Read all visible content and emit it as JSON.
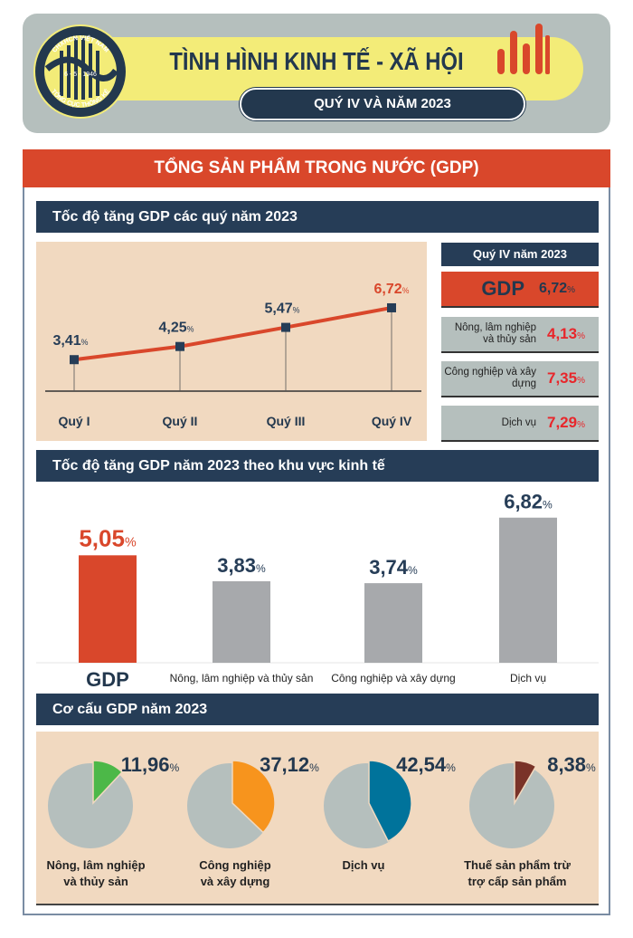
{
  "header": {
    "title": "TÌNH HÌNH KINH TẾ - XÃ HỘI",
    "period": "QUÝ IV VÀ NĂM 2023",
    "logo": {
      "top_text": "CHXHCN VIỆT NAM",
      "date": "6 - 5 - 1946",
      "bottom_text": "TỔNG CỤC THỐNG KÊ"
    }
  },
  "main_title": "TỔNG SẢN PHẨM TRONG NƯỚC (GDP)",
  "colors": {
    "red": "#d9472b",
    "navy": "#263d57",
    "panel": "#f1d9c0",
    "gray_bar": "#a7a9ac",
    "pie_gray": "#b5bfbd"
  },
  "sections": {
    "quarterly": "Tốc độ tăng GDP các quý năm 2023",
    "sector": "Tốc độ tăng GDP năm 2023 theo khu vực kinh tế",
    "structure": "Cơ cấu GDP năm 2023"
  },
  "q4_panel": {
    "title": "Quý IV năm 2023",
    "gdp": {
      "label": "GDP",
      "value": "6,72"
    },
    "items": [
      {
        "label": "Nông, lâm nghiệp và thủy sản",
        "value": "4,13"
      },
      {
        "label": "Công nghiệp và xây dựng",
        "value": "7,35"
      },
      {
        "label": "Dịch vụ",
        "value": "7,29"
      }
    ],
    "unit": "%"
  },
  "chart_data": [
    {
      "type": "line",
      "categories": [
        "Quý I",
        "Quý II",
        "Quý III",
        "Quý IV"
      ],
      "values": [
        3.41,
        4.25,
        5.47,
        6.72
      ],
      "labels": [
        "3,41",
        "4,25",
        "5,47",
        "6,72"
      ],
      "unit": "%",
      "highlight_last": true
    },
    {
      "type": "bar",
      "categories": [
        "GDP",
        "Nông, lâm nghiệp và thủy sản",
        "Công nghiệp và xây dựng",
        "Dịch vụ"
      ],
      "values": [
        5.05,
        3.83,
        3.74,
        6.82
      ],
      "labels": [
        "5,05",
        "3,83",
        "3,74",
        "6,82"
      ],
      "unit": "%"
    },
    {
      "type": "pie",
      "categories": [
        "Nông, lâm nghiệp và thủy sản",
        "Công nghiệp và xây dựng",
        "Dịch vụ",
        "Thuế sản phẩm trừ trợ cấp sản phẩm"
      ],
      "values": [
        11.96,
        37.12,
        42.54,
        8.38
      ],
      "labels": [
        "11,96",
        "37,12",
        "42,54",
        "8,38"
      ],
      "colors": [
        "#4cb848",
        "#f7941d",
        "#00739b",
        "#7a3328"
      ],
      "unit": "%"
    }
  ]
}
